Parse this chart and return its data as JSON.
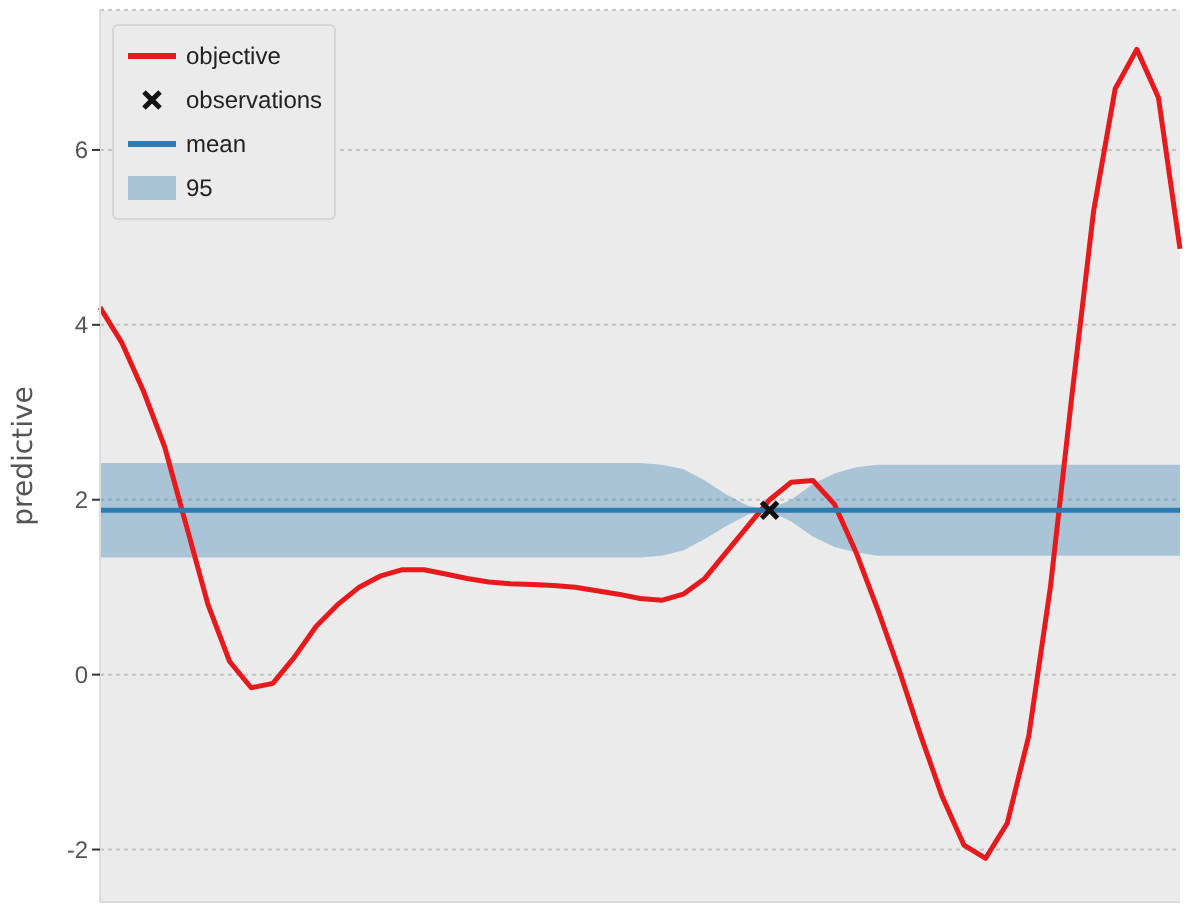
{
  "chart_data": {
    "type": "line",
    "ylabel": "predictive",
    "ylim": [
      -2.6,
      7.6
    ],
    "yticks": [
      -2,
      0,
      2,
      4,
      6
    ],
    "grid": "y",
    "legend": "top left",
    "annotations": [
      "95"
    ],
    "categories": [
      null,
      null,
      null,
      null,
      null,
      null,
      null,
      null,
      null,
      null,
      null,
      null,
      null,
      null,
      null,
      null,
      null,
      null,
      null,
      null,
      null,
      null,
      null,
      null,
      null,
      null,
      null,
      null,
      null,
      null,
      null,
      null,
      null,
      null,
      null,
      null,
      null,
      null,
      null,
      null,
      null,
      null,
      null,
      null,
      null,
      null,
      null,
      null,
      null,
      null,
      null
    ],
    "series": [
      {
        "name": "objective",
        "type": "line",
        "color": "#e8191c",
        "values": [
          4.2,
          3.8,
          3.25,
          2.6,
          1.7,
          0.8,
          0.15,
          -0.15,
          -0.1,
          0.2,
          0.55,
          0.8,
          1.0,
          1.13,
          1.2,
          1.2,
          1.15,
          1.1,
          1.06,
          1.04,
          1.03,
          1.02,
          1.0,
          0.96,
          0.92,
          0.87,
          0.85,
          0.92,
          1.1,
          1.4,
          1.7,
          2.0,
          2.2,
          2.22,
          1.95,
          1.4,
          0.75,
          0.05,
          -0.7,
          -1.4,
          -1.95,
          -2.1,
          -1.7,
          -0.7,
          1.0,
          3.2,
          5.3,
          6.7,
          7.15,
          6.6,
          4.87
        ]
      },
      {
        "name": "observations",
        "type": "scatter",
        "color": "#111111",
        "marker": "cross",
        "values": [
          null,
          null,
          null,
          null,
          null,
          null,
          null,
          null,
          null,
          null,
          null,
          null,
          null,
          null,
          null,
          null,
          null,
          null,
          null,
          null,
          null,
          null,
          null,
          null,
          null,
          null,
          null,
          null,
          null,
          null,
          null,
          1.88,
          null,
          null,
          null,
          null,
          null,
          null,
          null,
          null,
          null,
          null,
          null,
          null,
          null,
          null,
          null,
          null,
          null,
          null,
          null
        ]
      },
      {
        "name": "mean",
        "type": "line",
        "color": "#2e7bb0",
        "values": [
          1.88,
          1.88,
          1.88,
          1.88,
          1.88,
          1.88,
          1.88,
          1.88,
          1.88,
          1.88,
          1.88,
          1.88,
          1.88,
          1.88,
          1.88,
          1.88,
          1.88,
          1.88,
          1.88,
          1.88,
          1.88,
          1.88,
          1.88,
          1.88,
          1.88,
          1.88,
          1.88,
          1.88,
          1.88,
          1.88,
          1.88,
          1.88,
          1.88,
          1.88,
          1.88,
          1.88,
          1.88,
          1.88,
          1.88,
          1.88,
          1.88,
          1.88,
          1.88,
          1.88,
          1.88,
          1.88,
          1.88,
          1.88,
          1.88,
          1.88,
          1.88
        ],
        "lower": [
          1.34,
          1.34,
          1.34,
          1.34,
          1.34,
          1.34,
          1.34,
          1.34,
          1.34,
          1.34,
          1.34,
          1.34,
          1.34,
          1.34,
          1.34,
          1.34,
          1.34,
          1.34,
          1.34,
          1.34,
          1.34,
          1.34,
          1.34,
          1.34,
          1.34,
          1.34,
          1.36,
          1.42,
          1.55,
          1.7,
          1.83,
          1.87,
          1.75,
          1.58,
          1.46,
          1.4,
          1.36,
          1.36,
          1.36,
          1.36,
          1.36,
          1.36,
          1.36,
          1.36,
          1.36,
          1.36,
          1.36,
          1.36,
          1.36,
          1.36,
          1.36
        ],
        "upper": [
          2.42,
          2.42,
          2.42,
          2.42,
          2.42,
          2.42,
          2.42,
          2.42,
          2.42,
          2.42,
          2.42,
          2.42,
          2.42,
          2.42,
          2.42,
          2.42,
          2.42,
          2.42,
          2.42,
          2.42,
          2.42,
          2.42,
          2.42,
          2.42,
          2.42,
          2.42,
          2.4,
          2.35,
          2.22,
          2.06,
          1.93,
          1.89,
          2.0,
          2.18,
          2.3,
          2.37,
          2.4,
          2.4,
          2.4,
          2.4,
          2.4,
          2.4,
          2.4,
          2.4,
          2.4,
          2.4,
          2.4,
          2.4,
          2.4,
          2.4,
          2.4
        ]
      }
    ]
  }
}
